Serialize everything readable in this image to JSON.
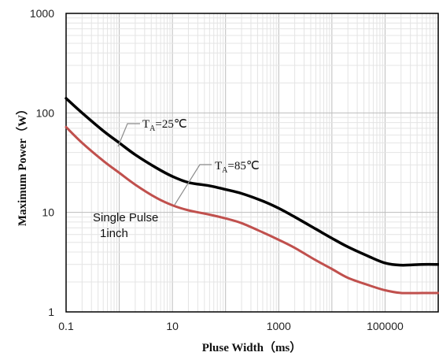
{
  "chart_data": {
    "type": "line",
    "xlabel": "Pluse Width（ms）",
    "ylabel": "Maximum Power（W）",
    "x_scale": "log",
    "y_scale": "log",
    "xlim": [
      0.1,
      1000000
    ],
    "ylim": [
      1,
      1000
    ],
    "x_ticks": [
      0.1,
      10,
      1000,
      100000
    ],
    "x_tick_labels": [
      "0.1",
      "10",
      "1000",
      "100000"
    ],
    "y_ticks": [
      1,
      10,
      100,
      1000
    ],
    "y_tick_labels": [
      "1",
      "10",
      "100",
      "1000"
    ],
    "grid": true,
    "series": [
      {
        "name": "TA=25℃",
        "label_main": "T",
        "label_sub": "A",
        "label_rest": "=25℃",
        "color": "#000000",
        "x": [
          0.1,
          0.2,
          0.5,
          1,
          2,
          5,
          10,
          20,
          50,
          100,
          200,
          500,
          1000,
          2000,
          5000,
          10000,
          20000,
          50000,
          100000,
          200000,
          500000,
          1000000
        ],
        "y": [
          140,
          100,
          66,
          50,
          38,
          28,
          23,
          20,
          18.5,
          17,
          15.5,
          13,
          11,
          9,
          6.8,
          5.5,
          4.5,
          3.6,
          3.1,
          2.95,
          3.0,
          3.0
        ]
      },
      {
        "name": "TA=85℃",
        "label_main": "T",
        "label_sub": "A",
        "label_rest": "=85℃",
        "color": "#C0504D",
        "x": [
          0.1,
          0.2,
          0.5,
          1,
          2,
          5,
          10,
          20,
          50,
          100,
          200,
          500,
          1000,
          2000,
          5000,
          10000,
          20000,
          50000,
          100000,
          200000,
          500000,
          1000000
        ],
        "y": [
          72,
          50,
          33,
          25,
          19,
          14,
          11.8,
          10.5,
          9.5,
          8.7,
          7.8,
          6.3,
          5.3,
          4.4,
          3.3,
          2.7,
          2.2,
          1.85,
          1.65,
          1.55,
          1.55,
          1.55
        ]
      }
    ],
    "annotations": [
      "Single Pulse",
      "1inch"
    ]
  }
}
